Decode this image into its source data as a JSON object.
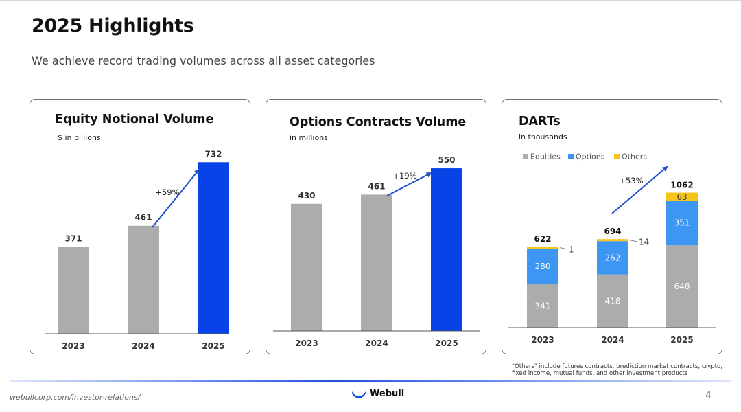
{
  "header": {
    "title": "2025 Highlights",
    "subtitle": "We achieve record trading volumes across all asset categories"
  },
  "colors": {
    "gray": "#acacac",
    "blue": "#0743e6",
    "options_blue": "#3d96f2",
    "others_yellow": "#f5c518",
    "arrow": "#1d4fd0"
  },
  "chart_data": [
    {
      "type": "bar",
      "title": "Equity Notional Volume",
      "subtitle": "$ in billions",
      "categories": [
        "2023",
        "2024",
        "2025"
      ],
      "values": [
        371,
        461,
        732
      ],
      "value_labels": [
        "371",
        "461",
        "732"
      ],
      "growth_label": "+59%",
      "ylim": [
        0,
        850
      ]
    },
    {
      "type": "bar",
      "title": "Options Contracts Volume",
      "subtitle": "in millions",
      "categories": [
        "2023",
        "2024",
        "2025"
      ],
      "values": [
        430,
        461,
        550
      ],
      "value_labels": [
        "430",
        "461",
        "550"
      ],
      "growth_label": "+19%",
      "ylim": [
        0,
        650
      ]
    },
    {
      "type": "bar",
      "stacked": true,
      "title": "DARTs",
      "subtitle": "in thousands",
      "categories": [
        "2023",
        "2024",
        "2025"
      ],
      "series": [
        {
          "name": "Equities",
          "values": [
            341,
            418,
            648
          ]
        },
        {
          "name": "Options",
          "values": [
            280,
            262,
            351
          ]
        },
        {
          "name": "Others",
          "values": [
            1,
            14,
            63
          ]
        }
      ],
      "segment_labels": [
        [
          "341",
          "280",
          "1"
        ],
        [
          "418",
          "262",
          "14"
        ],
        [
          "648",
          "351",
          "63"
        ]
      ],
      "totals": [
        "622",
        "694",
        "1062"
      ],
      "growth_label": "+53%",
      "ylim": [
        0,
        1200
      ],
      "legend_position": "top-left"
    }
  ],
  "footnote": "\"Others\" include futures contracts, prediction market contracts, crypto, fixed income, mutual funds, and other investment products",
  "footer": {
    "url": "webullcorp.com/investor-relations/",
    "logo_text": "Webull",
    "page_number": "4"
  }
}
